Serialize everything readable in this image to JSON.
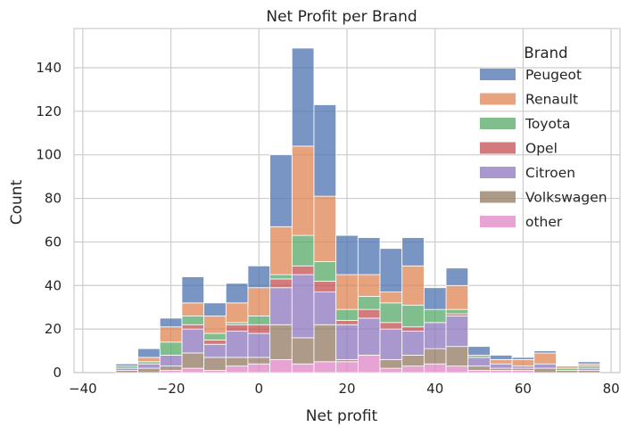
{
  "chart_data": {
    "type": "bar",
    "stacked": true,
    "title": "Net Profit per Brand",
    "xlabel": "Net profit",
    "ylabel": "Count",
    "xlim": [
      -42,
      82
    ],
    "ylim": [
      0,
      158
    ],
    "xticks": [
      -40,
      -20,
      0,
      20,
      40,
      60,
      80
    ],
    "xtick_labels": [
      "−40",
      "−20",
      "0",
      "20",
      "40",
      "60",
      "80"
    ],
    "yticks": [
      0,
      20,
      40,
      60,
      80,
      100,
      120,
      140
    ],
    "yticks_labels": [
      "0",
      "20",
      "40",
      "60",
      "80",
      "100",
      "120",
      "140"
    ],
    "grid": true,
    "legend_title": "Brand",
    "legend_position": "top-right",
    "bin_edges": [
      -37.5,
      -32.5,
      -27.5,
      -22.5,
      -17.5,
      -12.5,
      -7.5,
      -2.5,
      2.5,
      7.5,
      12.5,
      17.5,
      22.5,
      27.5,
      32.5,
      37.5,
      42.5,
      47.5,
      52.5,
      57.5,
      62.5,
      67.5,
      72.5,
      77.5
    ],
    "series": [
      {
        "name": "other",
        "color": "#dd84c6",
        "values": [
          0,
          0,
          0,
          1,
          2,
          1,
          3,
          4,
          6,
          4,
          5,
          5,
          8,
          2,
          3,
          4,
          3,
          1,
          1,
          1,
          0,
          0,
          0
        ]
      },
      {
        "name": "Volkswagen",
        "color": "#937860",
        "values": [
          0,
          1,
          2,
          2,
          7,
          6,
          4,
          3,
          16,
          12,
          17,
          1,
          0,
          4,
          5,
          7,
          9,
          2,
          1,
          1,
          2,
          1,
          1
        ]
      },
      {
        "name": "Citroen",
        "color": "#8c76bd",
        "values": [
          0,
          1,
          2,
          5,
          11,
          6,
          12,
          11,
          17,
          29,
          15,
          16,
          17,
          14,
          11,
          12,
          14,
          4,
          2,
          1,
          2,
          0,
          1
        ]
      },
      {
        "name": "Opel",
        "color": "#c44e52",
        "values": [
          0,
          0,
          0,
          0,
          2,
          2,
          3,
          4,
          4,
          4,
          5,
          2,
          4,
          3,
          2,
          0,
          1,
          0,
          0,
          0,
          0,
          0,
          0
        ]
      },
      {
        "name": "Toyota",
        "color": "#55a868",
        "values": [
          0,
          1,
          1,
          6,
          4,
          3,
          1,
          4,
          2,
          14,
          9,
          5,
          6,
          9,
          10,
          6,
          2,
          1,
          0,
          0,
          0,
          1,
          1
        ]
      },
      {
        "name": "Renault",
        "color": "#dd8452",
        "values": [
          0,
          0,
          2,
          7,
          6,
          8,
          9,
          13,
          22,
          41,
          30,
          16,
          10,
          5,
          18,
          0,
          11,
          0,
          2,
          3,
          5,
          1,
          1
        ]
      },
      {
        "name": "Peugeot",
        "color": "#4c72b0",
        "values": [
          0,
          1,
          4,
          4,
          12,
          6,
          9,
          10,
          33,
          45,
          42,
          18,
          17,
          20,
          13,
          10,
          8,
          4,
          2,
          1,
          1,
          0,
          1
        ]
      }
    ],
    "legend_order": [
      "Peugeot",
      "Renault",
      "Toyota",
      "Opel",
      "Citroen",
      "Volkswagen",
      "other"
    ]
  }
}
